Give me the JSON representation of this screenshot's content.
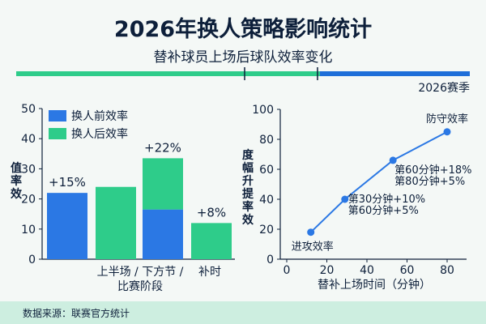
{
  "header": {
    "title": "2026年换人策略影响统计",
    "subtitle": "替补球员上场后球队效率变化",
    "season": "2026赛季"
  },
  "colors": {
    "blue": "#2b78e4",
    "green": "#2ecc8a",
    "timeline_blue": "#1e6fd9",
    "timeline_green": "#2ecc8a"
  },
  "footer": {
    "source": "数据来源：联赛官方统计"
  },
  "chart_data": [
    {
      "type": "bar",
      "ylabel": "值率效",
      "xlabel": "比赛阶段",
      "xlabel_tick": "上半场 / 下方节 /",
      "ylim": [
        0,
        50
      ],
      "yticks": [
        0,
        10,
        20,
        30,
        40,
        50
      ],
      "legend": [
        "换人前效率",
        "换人后效率"
      ],
      "legend_position": "top-left",
      "bars": [
        {
          "series": "换人前效率",
          "value": 22
        },
        {
          "series": "换人后效率",
          "value": 24
        },
        {
          "series": "换人前效率",
          "value": 16.5,
          "stack_top": {
            "series": "换人后效率",
            "value": 17
          }
        },
        {
          "series": "换人后效率",
          "value": 12
        }
      ],
      "tick_labels": [
        {
          "label": "补时"
        }
      ],
      "annotations": [
        {
          "bar": 0,
          "text": "+15%"
        },
        {
          "bar": 2,
          "text": "+22%"
        },
        {
          "bar": 3,
          "text": "+8%"
        }
      ]
    },
    {
      "type": "line",
      "xlabel": "替补上场时间（分钟）",
      "ylabel": "度幅升提率效",
      "xlim": [
        0,
        80
      ],
      "ylim": [
        0,
        100
      ],
      "xticks": [
        0,
        20,
        40,
        60,
        80
      ],
      "yticks": [
        0,
        20,
        40,
        60,
        80,
        100
      ],
      "grid": false,
      "points": [
        {
          "x": 12,
          "y": 18,
          "labels": [
            "进攻效率"
          ]
        },
        {
          "x": 29,
          "y": 40,
          "labels": [
            "第30分钟+10%",
            "第60分钟+5%"
          ]
        },
        {
          "x": 53,
          "y": 66,
          "labels": [
            "第60分钟+18%",
            "第80分钟+5%"
          ]
        },
        {
          "x": 80,
          "y": 85,
          "labels": [
            "防守效率"
          ]
        }
      ]
    }
  ]
}
